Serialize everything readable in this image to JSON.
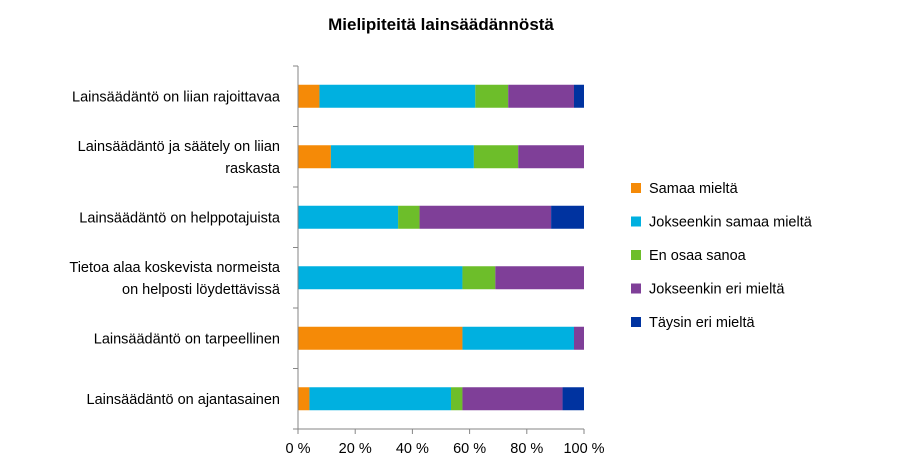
{
  "chart_data": {
    "type": "bar",
    "orientation": "horizontal",
    "stacked": "percent",
    "title": "Mielipiteitä lainsäädännöstä",
    "categories": [
      [
        "Lainsäädäntö on liian rajoittavaa"
      ],
      [
        "Lainsäädäntö ja säätely on liian",
        "raskasta"
      ],
      [
        "Lainsäädäntö on helppotajuista"
      ],
      [
        "Tietoa alaa koskevista normeista",
        "on helposti löydettävissä"
      ],
      [
        "Lainsäädäntö on tarpeellinen"
      ],
      [
        "Lainsäädäntö on ajantasainen"
      ]
    ],
    "series": [
      {
        "name": "Samaa mieltä",
        "color": "#F58A07",
        "values": [
          7.5,
          11.5,
          0,
          0,
          57.5,
          4
        ]
      },
      {
        "name": "Jokseenkin samaa mieltä",
        "color": "#00B0E0",
        "values": [
          54.5,
          50,
          35,
          57.5,
          39,
          49.5
        ]
      },
      {
        "name": "En osaa sanoa",
        "color": "#6DBE2A",
        "values": [
          11.5,
          15.5,
          7.5,
          11.5,
          0,
          4
        ]
      },
      {
        "name": "Jokseenkin eri mieltä",
        "color": "#7F3F98",
        "values": [
          23,
          23,
          46,
          31,
          3.5,
          35
        ]
      },
      {
        "name": "Täysin eri mieltä",
        "color": "#0033A0",
        "values": [
          3.5,
          0,
          11.5,
          0,
          0,
          7.5
        ]
      }
    ],
    "xlim": [
      0,
      100
    ],
    "ticks": [
      "0 %",
      "20 %",
      "40 %",
      "60 %",
      "80 %",
      "100 %"
    ],
    "xlabel": "",
    "ylabel": "",
    "grid": false,
    "legend": "right"
  }
}
